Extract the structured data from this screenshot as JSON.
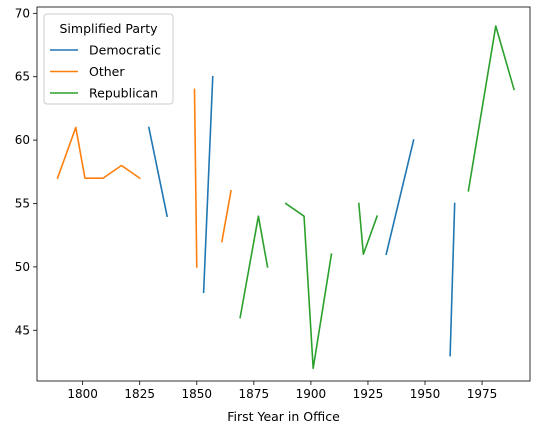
{
  "chart_data": {
    "type": "line",
    "title": "",
    "xlabel": "First Year in Office",
    "ylabel": "",
    "xlim": [
      1780,
      1996
    ],
    "ylim": [
      41,
      70.5
    ],
    "x_ticks": [
      1800,
      1825,
      1850,
      1875,
      1900,
      1925,
      1950,
      1975
    ],
    "y_ticks": [
      45,
      50,
      55,
      60,
      65,
      70
    ],
    "grid": false,
    "legend": {
      "title": "Simplified Party",
      "placement": "top-left",
      "entries": [
        {
          "name": "Democratic",
          "color": "#1f77b4"
        },
        {
          "name": "Other",
          "color": "#ff7f0e"
        },
        {
          "name": "Republican",
          "color": "#2ca02c"
        }
      ]
    },
    "series": [
      {
        "name": "Democratic",
        "color": "#1f77b4",
        "segments": [
          [
            [
              1829,
              61
            ],
            [
              1837,
              54
            ]
          ],
          [
            [
              1853,
              48
            ],
            [
              1857,
              65
            ]
          ],
          [
            [
              1933,
              51
            ],
            [
              1945,
              60
            ]
          ],
          [
            [
              1961,
              43
            ],
            [
              1963,
              55
            ]
          ]
        ]
      },
      {
        "name": "Other",
        "color": "#ff7f0e",
        "segments": [
          [
            [
              1789,
              57
            ],
            [
              1797,
              61
            ],
            [
              1801,
              57
            ],
            [
              1809,
              57
            ],
            [
              1817,
              58
            ],
            [
              1825,
              57
            ]
          ],
          [
            [
              1849,
              64
            ],
            [
              1850,
              50
            ]
          ],
          [
            [
              1861,
              52
            ],
            [
              1865,
              56
            ]
          ]
        ]
      },
      {
        "name": "Republican",
        "color": "#2ca02c",
        "segments": [
          [
            [
              1869,
              46
            ],
            [
              1877,
              54
            ],
            [
              1881,
              50
            ]
          ],
          [
            [
              1889,
              55
            ],
            [
              1897,
              54
            ],
            [
              1901,
              42
            ],
            [
              1909,
              51
            ]
          ],
          [
            [
              1921,
              55
            ],
            [
              1923,
              51
            ],
            [
              1929,
              54
            ]
          ],
          [
            [
              1969,
              56
            ],
            [
              1981,
              69
            ],
            [
              1989,
              64
            ]
          ]
        ]
      }
    ]
  }
}
